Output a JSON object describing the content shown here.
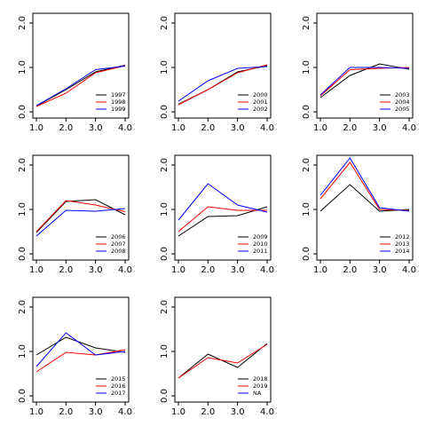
{
  "chart_data": [
    {
      "type": "line",
      "x": [
        1,
        2,
        3,
        4
      ],
      "xlim": [
        0.88,
        4.12
      ],
      "ylim": [
        -0.14,
        2.22
      ],
      "xticks": [
        {
          "value": 1,
          "label": "1.0"
        },
        {
          "value": 2,
          "label": "2.0"
        },
        {
          "value": 3,
          "label": "3.0"
        },
        {
          "value": 4,
          "label": "4.0"
        }
      ],
      "yticks": [
        {
          "value": 0,
          "label": "0.0"
        },
        {
          "value": 1,
          "label": "1.0"
        },
        {
          "value": 2,
          "label": "2.0"
        }
      ],
      "legend": "bottomright",
      "series": [
        {
          "name": "1997",
          "color": "#000000",
          "values": [
            0.13,
            0.5,
            0.9,
            1.05
          ]
        },
        {
          "name": "1998",
          "color": "#ff0000",
          "values": [
            0.12,
            0.42,
            0.88,
            1.04
          ]
        },
        {
          "name": "1999",
          "color": "#0000ff",
          "values": [
            0.14,
            0.52,
            0.95,
            1.03
          ]
        }
      ]
    },
    {
      "type": "line",
      "x": [
        1,
        2,
        3,
        4
      ],
      "xlim": [
        0.88,
        4.12
      ],
      "ylim": [
        -0.14,
        2.22
      ],
      "xticks": [
        {
          "value": 1,
          "label": "1.0"
        },
        {
          "value": 2,
          "label": "2.0"
        },
        {
          "value": 3,
          "label": "3.0"
        },
        {
          "value": 4,
          "label": "4.0"
        }
      ],
      "yticks": [
        {
          "value": 0,
          "label": "0.0"
        },
        {
          "value": 1,
          "label": "1.0"
        },
        {
          "value": 2,
          "label": "2.0"
        }
      ],
      "legend": "bottomright",
      "series": [
        {
          "name": "2000",
          "color": "#000000",
          "values": [
            0.17,
            0.5,
            0.9,
            1.04
          ]
        },
        {
          "name": "2001",
          "color": "#ff0000",
          "values": [
            0.16,
            0.5,
            0.88,
            1.06
          ]
        },
        {
          "name": "2002",
          "color": "#0000ff",
          "values": [
            0.24,
            0.7,
            0.98,
            1.02
          ]
        }
      ]
    },
    {
      "type": "line",
      "x": [
        1,
        2,
        3,
        4
      ],
      "xlim": [
        0.88,
        4.12
      ],
      "ylim": [
        -0.14,
        2.22
      ],
      "xticks": [
        {
          "value": 1,
          "label": "1.0"
        },
        {
          "value": 2,
          "label": "2.0"
        },
        {
          "value": 3,
          "label": "3.0"
        },
        {
          "value": 4,
          "label": "4.0"
        }
      ],
      "yticks": [
        {
          "value": 0,
          "label": "0.0"
        },
        {
          "value": 1,
          "label": "1.0"
        },
        {
          "value": 2,
          "label": "2.0"
        }
      ],
      "legend": "bottomright",
      "series": [
        {
          "name": "2003",
          "color": "#000000",
          "values": [
            0.32,
            0.82,
            1.08,
            0.96
          ]
        },
        {
          "name": "2004",
          "color": "#ff0000",
          "values": [
            0.36,
            0.95,
            0.98,
            1.0
          ]
        },
        {
          "name": "2005",
          "color": "#0000ff",
          "values": [
            0.38,
            1.0,
            1.0,
            0.98
          ]
        }
      ]
    },
    {
      "type": "line",
      "x": [
        1,
        2,
        3,
        4
      ],
      "xlim": [
        0.88,
        4.12
      ],
      "ylim": [
        -0.14,
        2.22
      ],
      "xticks": [
        {
          "value": 1,
          "label": "1.0"
        },
        {
          "value": 2,
          "label": "2.0"
        },
        {
          "value": 3,
          "label": "3.0"
        },
        {
          "value": 4,
          "label": "4.0"
        }
      ],
      "yticks": [
        {
          "value": 0,
          "label": "0.0"
        },
        {
          "value": 1,
          "label": "1.0"
        },
        {
          "value": 2,
          "label": "2.0"
        }
      ],
      "legend": "bottomright",
      "series": [
        {
          "name": "2006",
          "color": "#000000",
          "values": [
            0.48,
            1.18,
            1.22,
            0.88
          ]
        },
        {
          "name": "2007",
          "color": "#ff0000",
          "values": [
            0.5,
            1.2,
            1.1,
            0.95
          ]
        },
        {
          "name": "2008",
          "color": "#0000ff",
          "values": [
            0.4,
            0.98,
            0.96,
            1.02
          ]
        }
      ]
    },
    {
      "type": "line",
      "x": [
        1,
        2,
        3,
        4
      ],
      "xlim": [
        0.88,
        4.12
      ],
      "ylim": [
        -0.14,
        2.22
      ],
      "xticks": [
        {
          "value": 1,
          "label": "1.0"
        },
        {
          "value": 2,
          "label": "2.0"
        },
        {
          "value": 3,
          "label": "3.0"
        },
        {
          "value": 4,
          "label": "4.0"
        }
      ],
      "yticks": [
        {
          "value": 0,
          "label": "0.0"
        },
        {
          "value": 1,
          "label": "1.0"
        },
        {
          "value": 2,
          "label": "2.0"
        }
      ],
      "legend": "bottomright",
      "series": [
        {
          "name": "2009",
          "color": "#000000",
          "values": [
            0.4,
            0.84,
            0.86,
            1.06
          ]
        },
        {
          "name": "2010",
          "color": "#ff0000",
          "values": [
            0.5,
            1.06,
            0.98,
            0.98
          ]
        },
        {
          "name": "2011",
          "color": "#0000ff",
          "values": [
            0.76,
            1.58,
            1.1,
            0.94
          ]
        }
      ]
    },
    {
      "type": "line",
      "x": [
        1,
        2,
        3,
        4
      ],
      "xlim": [
        0.88,
        4.12
      ],
      "ylim": [
        -0.14,
        2.22
      ],
      "xticks": [
        {
          "value": 1,
          "label": "1.0"
        },
        {
          "value": 2,
          "label": "2.0"
        },
        {
          "value": 3,
          "label": "3.0"
        },
        {
          "value": 4,
          "label": "4.0"
        }
      ],
      "yticks": [
        {
          "value": 0,
          "label": "0.0"
        },
        {
          "value": 1,
          "label": "1.0"
        },
        {
          "value": 2,
          "label": "2.0"
        }
      ],
      "legend": "bottomright",
      "series": [
        {
          "name": "2012",
          "color": "#000000",
          "values": [
            0.96,
            1.56,
            0.96,
            1.0
          ]
        },
        {
          "name": "2013",
          "color": "#ff0000",
          "values": [
            1.24,
            2.06,
            1.0,
            0.98
          ]
        },
        {
          "name": "2014",
          "color": "#0000ff",
          "values": [
            1.32,
            2.16,
            1.04,
            0.96
          ]
        }
      ]
    },
    {
      "type": "line",
      "x": [
        1,
        2,
        3,
        4
      ],
      "xlim": [
        0.88,
        4.12
      ],
      "ylim": [
        -0.14,
        2.22
      ],
      "xticks": [
        {
          "value": 1,
          "label": "1.0"
        },
        {
          "value": 2,
          "label": "2.0"
        },
        {
          "value": 3,
          "label": "3.0"
        },
        {
          "value": 4,
          "label": "4.0"
        }
      ],
      "yticks": [
        {
          "value": 0,
          "label": "0.0"
        },
        {
          "value": 1,
          "label": "1.0"
        },
        {
          "value": 2,
          "label": "2.0"
        }
      ],
      "legend": "bottomright",
      "series": [
        {
          "name": "2015",
          "color": "#000000",
          "values": [
            0.92,
            1.32,
            1.08,
            0.98
          ]
        },
        {
          "name": "2016",
          "color": "#ff0000",
          "values": [
            0.54,
            0.98,
            0.92,
            1.04
          ]
        },
        {
          "name": "2017",
          "color": "#0000ff",
          "values": [
            0.66,
            1.42,
            0.92,
            1.0
          ]
        }
      ]
    },
    {
      "type": "line",
      "x": [
        1,
        2,
        3,
        4
      ],
      "xlim": [
        0.88,
        4.12
      ],
      "ylim": [
        -0.14,
        2.22
      ],
      "xticks": [
        {
          "value": 1,
          "label": "1.0"
        },
        {
          "value": 2,
          "label": "2.0"
        },
        {
          "value": 3,
          "label": "3.0"
        },
        {
          "value": 4,
          "label": "4.0"
        }
      ],
      "yticks": [
        {
          "value": 0,
          "label": "0.0"
        },
        {
          "value": 1,
          "label": "1.0"
        },
        {
          "value": 2,
          "label": "2.0"
        }
      ],
      "legend": "bottomright",
      "series": [
        {
          "name": "2018",
          "color": "#000000",
          "values": [
            0.4,
            0.94,
            0.64,
            1.18
          ]
        },
        {
          "name": "2019",
          "color": "#ff0000",
          "values": [
            0.4,
            0.86,
            0.74,
            1.16
          ]
        },
        {
          "name": "NA",
          "color": "#0000ff",
          "values": [
            null,
            null,
            null,
            null
          ]
        }
      ]
    }
  ]
}
